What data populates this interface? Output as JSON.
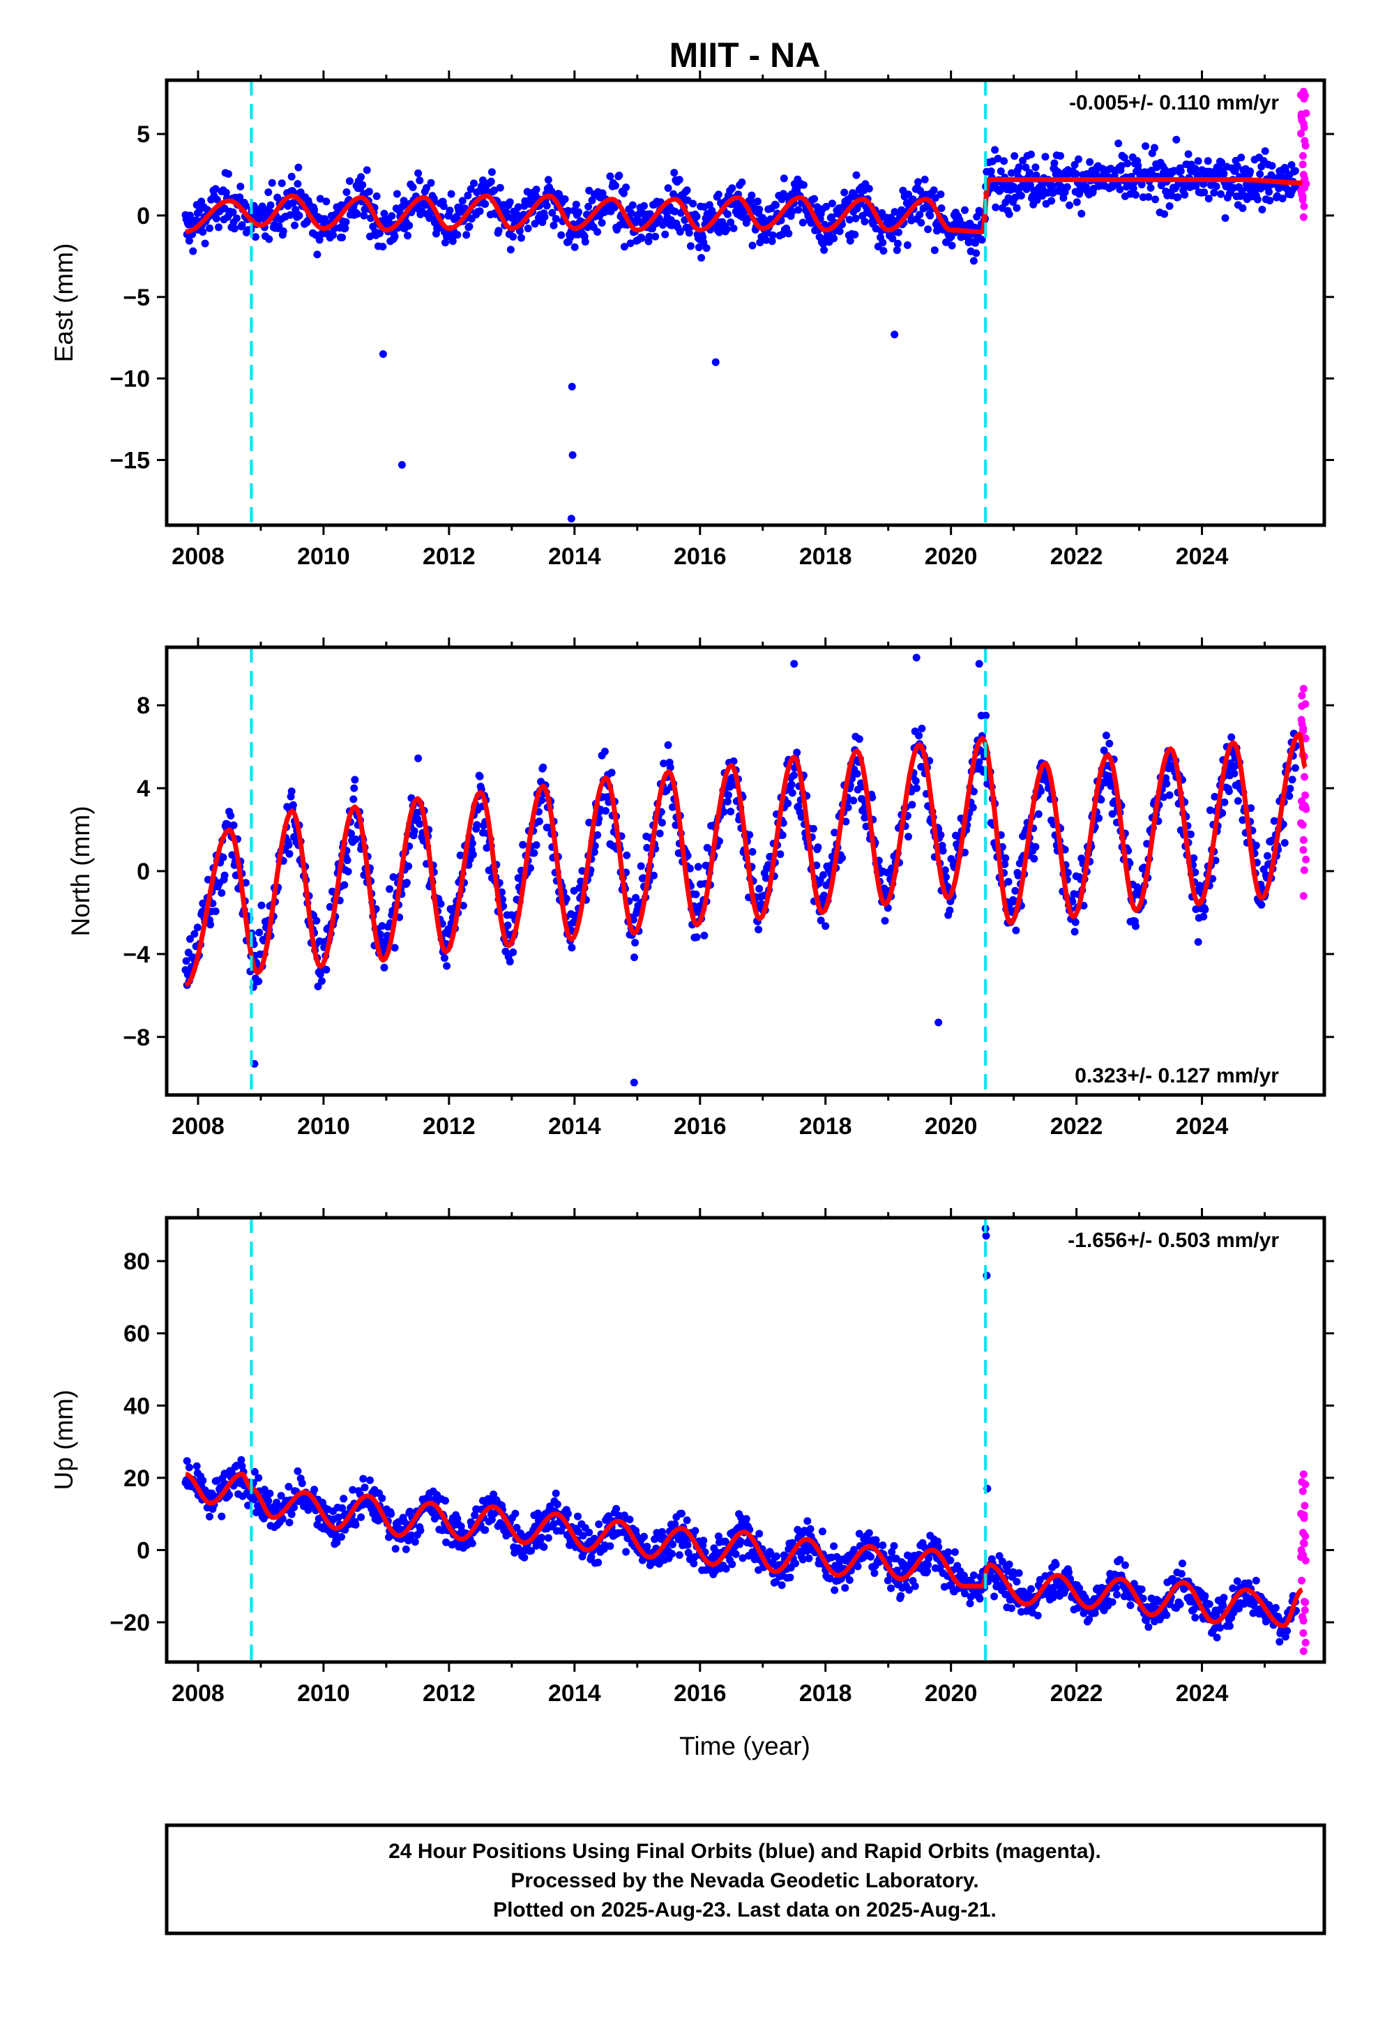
{
  "title": "MIIT - NA",
  "x_axis_label": "Time (year)",
  "x_tick_labels": [
    "2008",
    "2010",
    "2012",
    "2014",
    "2016",
    "2018",
    "2020",
    "2022",
    "2024"
  ],
  "footer": {
    "line1": "24 Hour Positions Using Final Orbits (blue) and Rapid Orbits (magenta).",
    "line2": "Processed by the Nevada Geodetic Laboratory.",
    "line3": "Plotted on 2025-Aug-23. Last data on 2025-Aug-21."
  },
  "colors": {
    "final_orbits": "#0000ff",
    "rapid_orbits": "#ff00ff",
    "model": "#ff0000",
    "steps": "#00e5ee",
    "frame": "#000000"
  },
  "chart_data": [
    {
      "type": "scatter",
      "component": "east",
      "ylabel": "East (mm)",
      "rate_label": "-0.005+/- 0.110 mm/yr",
      "rate_position": "top-right",
      "xlim": [
        2007.5,
        2025.95
      ],
      "ylim": [
        -19.0,
        8.3
      ],
      "x_ticks": [
        2008,
        2010,
        2012,
        2014,
        2016,
        2018,
        2020,
        2022,
        2024
      ],
      "y_ticks": [
        5,
        0,
        -5,
        -10,
        -15
      ],
      "y_tick_labels": [
        "5",
        "0",
        "−5",
        "−10",
        "−15"
      ],
      "step_epochs": [
        2008.85,
        2020.55
      ],
      "series": [
        {
          "name": "Final Orbits",
          "x": [
            2007.8,
            2009.0,
            2010.0,
            2011.0,
            2012.0,
            2013.0,
            2014.0,
            2015.0,
            2016.0,
            2017.0,
            2018.0,
            2019.0,
            2020.0,
            2020.6,
            2021.5,
            2022.5,
            2023.5,
            2024.5,
            2025.5
          ],
          "y": [
            -1.2,
            -0.5,
            -0.8,
            -0.6,
            -0.7,
            -0.4,
            -0.6,
            -0.8,
            -0.5,
            -0.6,
            -0.7,
            -0.6,
            -0.9,
            1.8,
            0.8,
            0.9,
            0.7,
            0.6,
            0.5
          ]
        },
        {
          "name": "Rapid Orbits",
          "x": [
            2025.6,
            2025.62,
            2025.64
          ],
          "y": [
            7.6,
            2.5,
            -0.1
          ]
        },
        {
          "name": "Model",
          "x": [
            2007.8,
            2008.5,
            2009.0,
            2009.5,
            2010.0,
            2010.6,
            2011.0,
            2011.6,
            2012.0,
            2012.6,
            2013.0,
            2013.6,
            2014.0,
            2014.6,
            2015.0,
            2015.6,
            2016.0,
            2016.6,
            2017.0,
            2017.6,
            2018.0,
            2018.6,
            2019.0,
            2019.6,
            2020.0,
            2020.5,
            2020.6,
            2021.6,
            2022.6,
            2023.6,
            2024.6,
            2025.6
          ],
          "y": [
            -1.0,
            0.9,
            -0.6,
            1.2,
            -0.8,
            1.1,
            -0.9,
            1.1,
            -0.8,
            1.2,
            -0.8,
            1.2,
            -0.8,
            1.0,
            -0.9,
            1.0,
            -0.9,
            1.1,
            -0.8,
            1.1,
            -0.9,
            1.0,
            -0.9,
            1.0,
            -0.9,
            -1.0,
            2.2,
            2.2,
            2.2,
            2.2,
            2.2,
            2.0
          ]
        }
      ],
      "outliers": {
        "x": [
          2010.95,
          2011.25,
          2013.95,
          2013.96,
          2013.97,
          2019.1,
          2016.25
        ],
        "y": [
          -8.5,
          -15.3,
          -18.6,
          -10.5,
          -14.7,
          -7.3,
          -9.0
        ]
      }
    },
    {
      "type": "scatter",
      "component": "north",
      "ylabel": "North (mm)",
      "rate_label": "0.323+/- 0.127 mm/yr",
      "rate_position": "bottom-right",
      "xlim": [
        2007.5,
        2025.95
      ],
      "ylim": [
        -10.8,
        10.8
      ],
      "x_ticks": [
        2008,
        2010,
        2012,
        2014,
        2016,
        2018,
        2020,
        2022,
        2024
      ],
      "y_ticks": [
        8,
        4,
        0,
        -4,
        -8
      ],
      "y_tick_labels": [
        "8",
        "4",
        "0",
        "−4",
        "−8"
      ],
      "step_epochs": [
        2008.85,
        2020.55
      ],
      "series": [
        {
          "name": "Final Orbits",
          "x": [
            2007.8,
            2008.5,
            2009.0,
            2010.5,
            2012.0,
            2014.0,
            2016.0,
            2018.0,
            2020.0,
            2022.0,
            2024.0,
            2025.5
          ],
          "y": [
            -6.0,
            2.5,
            -5.0,
            3.5,
            -4.0,
            4.5,
            -2.5,
            5.5,
            -1.5,
            -2.5,
            6.0,
            4.5
          ]
        },
        {
          "name": "Rapid Orbits",
          "x": [
            2025.6,
            2025.62,
            2025.64
          ],
          "y": [
            8.8,
            1.5,
            -1.2
          ]
        },
        {
          "name": "Model",
          "x": [
            2007.8,
            2008.5,
            2008.95,
            2009.5,
            2009.95,
            2010.5,
            2010.95,
            2011.5,
            2011.95,
            2012.5,
            2012.95,
            2013.5,
            2013.95,
            2014.5,
            2014.95,
            2015.5,
            2015.95,
            2016.5,
            2016.95,
            2017.5,
            2017.95,
            2018.5,
            2018.95,
            2019.5,
            2019.95,
            2020.5,
            2020.95,
            2021.5,
            2021.95,
            2022.5,
            2022.95,
            2023.5,
            2023.95,
            2024.5,
            2024.95,
            2025.55,
            2025.65
          ],
          "y": [
            -5.5,
            2.0,
            -4.9,
            2.9,
            -4.6,
            3.1,
            -4.3,
            3.5,
            -3.9,
            3.8,
            -3.6,
            4.1,
            -3.3,
            4.5,
            -3.0,
            4.8,
            -2.6,
            5.1,
            -2.3,
            5.5,
            -2.0,
            5.8,
            -1.6,
            6.1,
            -1.3,
            6.4,
            -2.5,
            5.2,
            -2.2,
            5.6,
            -1.9,
            5.9,
            -1.6,
            6.2,
            -1.3,
            6.6,
            5.0
          ]
        }
      ],
      "outliers": {
        "x": [
          2008.9,
          2014.95,
          2019.8,
          2019.45,
          2020.45,
          2017.5
        ],
        "y": [
          -9.3,
          -10.2,
          -7.3,
          10.3,
          10.0,
          10.0
        ]
      }
    },
    {
      "type": "scatter",
      "component": "up",
      "ylabel": "Up (mm)",
      "rate_label": "-1.656+/- 0.503 mm/yr",
      "rate_position": "top-right",
      "xlim": [
        2007.5,
        2025.95
      ],
      "ylim": [
        -31,
        92
      ],
      "x_ticks": [
        2008,
        2010,
        2012,
        2014,
        2016,
        2018,
        2020,
        2022,
        2024
      ],
      "y_ticks": [
        80,
        60,
        40,
        20,
        0,
        -20
      ],
      "y_tick_labels": [
        "80",
        "60",
        "40",
        "20",
        "0",
        "−20"
      ],
      "step_epochs": [
        2008.85,
        2020.55
      ],
      "series": [
        {
          "name": "Final Orbits",
          "x": [
            2007.8,
            2009.0,
            2010.0,
            2011.0,
            2012.0,
            2013.0,
            2014.0,
            2015.0,
            2016.0,
            2017.0,
            2018.0,
            2019.0,
            2020.0,
            2021.0,
            2022.0,
            2023.0,
            2024.0,
            2025.5
          ],
          "y": [
            22,
            16,
            12,
            11,
            8,
            12,
            5,
            1,
            -1,
            -3,
            -5,
            -6,
            -9,
            -11,
            -12,
            -14,
            -15,
            -17
          ]
        },
        {
          "name": "Rapid Orbits",
          "x": [
            2025.6,
            2025.62,
            2025.64
          ],
          "y": [
            21,
            2,
            -28
          ]
        },
        {
          "name": "Model",
          "x": [
            2007.8,
            2008.2,
            2008.7,
            2008.85,
            2009.2,
            2009.7,
            2010.2,
            2010.7,
            2011.2,
            2011.7,
            2012.2,
            2012.7,
            2013.2,
            2013.7,
            2014.2,
            2014.7,
            2015.2,
            2015.7,
            2016.2,
            2016.7,
            2017.2,
            2017.7,
            2018.2,
            2018.7,
            2019.2,
            2019.7,
            2020.2,
            2020.5,
            2020.6,
            2021.2,
            2021.7,
            2022.2,
            2022.7,
            2023.2,
            2023.7,
            2024.2,
            2024.7,
            2025.3,
            2025.6
          ],
          "y": [
            21,
            13,
            21,
            17,
            9,
            16,
            6,
            15,
            4,
            13,
            3,
            12,
            2,
            10,
            0,
            8,
            -2,
            6,
            -4,
            5,
            -6,
            3,
            -7,
            1,
            -8,
            0,
            -10,
            -10,
            -4,
            -15,
            -7,
            -16,
            -8,
            -18,
            -9,
            -20,
            -11,
            -21,
            -11
          ]
        }
      ],
      "outliers": {
        "x": [
          2020.55,
          2020.56,
          2020.57,
          2020.58
        ],
        "y": [
          89,
          87,
          76,
          17
        ]
      }
    }
  ]
}
